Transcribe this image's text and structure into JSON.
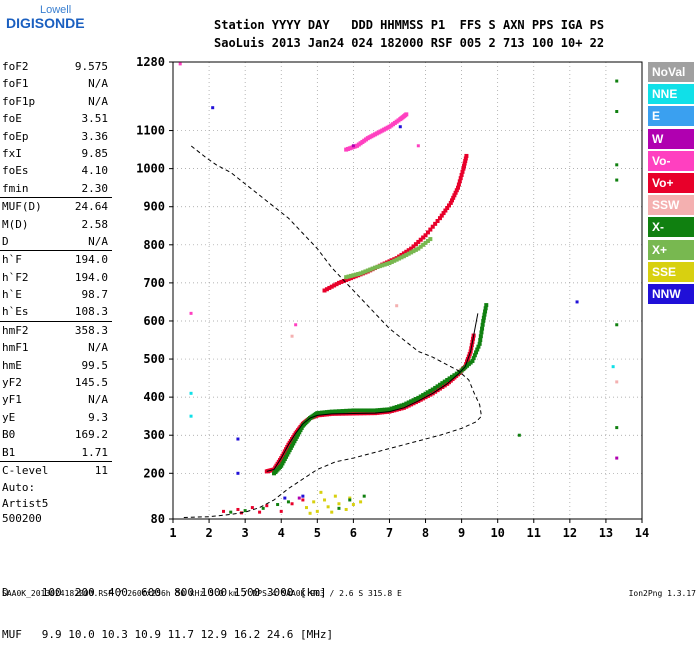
{
  "logo": {
    "line1": "Lowell",
    "line2": "DIGISONDE"
  },
  "header": {
    "line1": "Station YYYY DAY   DDD HHMMSS P1  FFS S AXN PPS IGA PS",
    "line2": "SaoLuis 2013 Jan24 024 182000 RSF 005 2 713 100 10+ 22"
  },
  "params": [
    {
      "k": "foF2",
      "v": "9.575"
    },
    {
      "k": "foF1",
      "v": "N/A"
    },
    {
      "k": "foF1p",
      "v": "N/A"
    },
    {
      "k": "foE",
      "v": "3.51"
    },
    {
      "k": "foEp",
      "v": "3.36"
    },
    {
      "k": "fxI",
      "v": "9.85"
    },
    {
      "k": "foEs",
      "v": "4.10"
    },
    {
      "k": "fmin",
      "v": "2.30"
    },
    {
      "k": "MUF(D)",
      "v": "24.64",
      "sep": true
    },
    {
      "k": "M(D)",
      "v": "2.58"
    },
    {
      "k": "D",
      "v": "N/A"
    },
    {
      "k": "h`F",
      "v": "194.0",
      "sep": true
    },
    {
      "k": "h`F2",
      "v": "194.0"
    },
    {
      "k": "h`E",
      "v": "98.7"
    },
    {
      "k": "h`Es",
      "v": "108.3"
    },
    {
      "k": "hmF2",
      "v": "358.3",
      "sep": true
    },
    {
      "k": "hmF1",
      "v": "N/A"
    },
    {
      "k": "hmE",
      "v": "99.5"
    },
    {
      "k": "yF2",
      "v": "145.5"
    },
    {
      "k": "yF1",
      "v": "N/A"
    },
    {
      "k": "yE",
      "v": "9.3"
    },
    {
      "k": "B0",
      "v": "169.2"
    },
    {
      "k": "B1",
      "v": "1.71"
    },
    {
      "k": "C-level",
      "v": "11",
      "sep": true
    }
  ],
  "auto": {
    "line1": "Auto:",
    "line2": "Artist5",
    "line3": "500200"
  },
  "legend": [
    {
      "label": "NoVal",
      "color": "#a0a0a0"
    },
    {
      "label": "NNE",
      "color": "#10e0e8"
    },
    {
      "label": "E",
      "color": "#3aa0f0"
    },
    {
      "label": "W",
      "color": "#b000b0"
    },
    {
      "label": "Vo-",
      "color": "#ff40c0"
    },
    {
      "label": "Vo+",
      "color": "#e8002a"
    },
    {
      "label": "SSW",
      "color": "#f4b0b0"
    },
    {
      "label": "X-",
      "color": "#108010"
    },
    {
      "label": "X+",
      "color": "#78b850"
    },
    {
      "label": "SSE",
      "color": "#d8d010"
    },
    {
      "label": "NNW",
      "color": "#2010d8"
    }
  ],
  "bottom": {
    "line1": "D     100  200  400  600  800 1000 1500 3000 [km]",
    "line2": "MUF   9.9 10.0 10.3 10.9 11.7 12.9 16.2 24.6 [MHz]"
  },
  "footer": "SAA0K_2013024182000.RSF / 260fx256h 50 kHz 5.0 km / DPS-4 SAA0K 903 / 2.6 S 315.8 E",
  "version": "Ion2Png 1.3.17",
  "chart_data": {
    "type": "scatter",
    "x_ticks": [
      1,
      2,
      3,
      4,
      5,
      6,
      7,
      8,
      9,
      10,
      11,
      12,
      13,
      14
    ],
    "y_ticks": [
      80,
      200,
      300,
      400,
      500,
      600,
      700,
      800,
      900,
      1000,
      1100,
      1280
    ],
    "xlim": [
      1,
      14
    ],
    "ylim": [
      80,
      1280
    ],
    "grid": "dotted",
    "series": [
      {
        "name": "Vo+",
        "kind": "trace",
        "color": "#e8002a",
        "points": [
          [
            3.6,
            205
          ],
          [
            3.8,
            210
          ],
          [
            4.0,
            240
          ],
          [
            4.2,
            275
          ],
          [
            4.4,
            305
          ],
          [
            4.6,
            330
          ],
          [
            4.8,
            345
          ],
          [
            5.0,
            352
          ],
          [
            5.4,
            356
          ],
          [
            6.0,
            357
          ],
          [
            6.6,
            358
          ],
          [
            7.0,
            362
          ],
          [
            7.4,
            372
          ],
          [
            7.8,
            390
          ],
          [
            8.2,
            410
          ],
          [
            8.6,
            435
          ],
          [
            8.9,
            460
          ],
          [
            9.1,
            480
          ],
          [
            9.25,
            520
          ],
          [
            9.35,
            570
          ]
        ]
      },
      {
        "name": "X-",
        "kind": "trace",
        "color": "#108010",
        "points": [
          [
            3.8,
            200
          ],
          [
            4.0,
            220
          ],
          [
            4.2,
            255
          ],
          [
            4.4,
            290
          ],
          [
            4.6,
            325
          ],
          [
            4.8,
            345
          ],
          [
            5.0,
            358
          ],
          [
            5.4,
            362
          ],
          [
            6.0,
            365
          ],
          [
            6.6,
            365
          ],
          [
            7.0,
            368
          ],
          [
            7.4,
            380
          ],
          [
            7.8,
            398
          ],
          [
            8.2,
            420
          ],
          [
            8.6,
            445
          ],
          [
            9.0,
            470
          ],
          [
            9.3,
            495
          ],
          [
            9.5,
            540
          ],
          [
            9.6,
            600
          ],
          [
            9.7,
            650
          ]
        ]
      },
      {
        "name": "Vo+",
        "kind": "trace",
        "color": "#e8002a",
        "points": [
          [
            5.2,
            680
          ],
          [
            5.6,
            700
          ],
          [
            6.0,
            715
          ],
          [
            6.4,
            730
          ],
          [
            6.8,
            748
          ],
          [
            7.2,
            765
          ],
          [
            7.6,
            790
          ],
          [
            8.0,
            825
          ],
          [
            8.4,
            870
          ],
          [
            8.7,
            910
          ],
          [
            8.9,
            950
          ],
          [
            9.05,
            1000
          ],
          [
            9.15,
            1040
          ]
        ]
      },
      {
        "name": "X+",
        "kind": "trace",
        "color": "#78b850",
        "points": [
          [
            5.8,
            715
          ],
          [
            6.2,
            725
          ],
          [
            6.6,
            740
          ],
          [
            7.0,
            752
          ],
          [
            7.4,
            770
          ],
          [
            7.8,
            790
          ],
          [
            8.2,
            820
          ]
        ]
      },
      {
        "name": "Vo-",
        "kind": "trace",
        "color": "#ff40c0",
        "points": [
          [
            5.8,
            1050
          ],
          [
            6.1,
            1060
          ],
          [
            6.4,
            1080
          ],
          [
            6.7,
            1095
          ],
          [
            7.0,
            1110
          ],
          [
            7.3,
            1130
          ],
          [
            7.5,
            1145
          ]
        ]
      },
      {
        "name": "SSE",
        "kind": "cloud",
        "color": "#d8d010",
        "points": [
          [
            4.7,
            110
          ],
          [
            4.9,
            125
          ],
          [
            5.0,
            100
          ],
          [
            5.2,
            130
          ],
          [
            5.3,
            112
          ],
          [
            5.5,
            140
          ],
          [
            5.6,
            120
          ],
          [
            5.8,
            105
          ],
          [
            5.9,
            135
          ],
          [
            6.0,
            118
          ],
          [
            6.2,
            125
          ],
          [
            5.1,
            150
          ],
          [
            4.8,
            95
          ],
          [
            5.4,
            98
          ]
        ]
      },
      {
        "name": "Vo+",
        "kind": "cloud",
        "color": "#e8002a",
        "points": [
          [
            2.4,
            100
          ],
          [
            2.8,
            105
          ],
          [
            3.2,
            110
          ],
          [
            3.6,
            115
          ],
          [
            4.0,
            100
          ],
          [
            4.3,
            120
          ],
          [
            4.6,
            130
          ],
          [
            3.4,
            98
          ],
          [
            2.9,
            96
          ]
        ]
      },
      {
        "name": "X-",
        "kind": "cloud",
        "color": "#108010",
        "points": [
          [
            2.6,
            98
          ],
          [
            3.0,
            102
          ],
          [
            3.5,
            108
          ],
          [
            3.9,
            118
          ],
          [
            4.2,
            125
          ],
          [
            5.6,
            108
          ],
          [
            5.9,
            130
          ],
          [
            6.3,
            140
          ]
        ]
      },
      {
        "name": "NNW",
        "kind": "cloud",
        "color": "#2010d8",
        "points": [
          [
            2.1,
            1160
          ],
          [
            2.8,
            290
          ],
          [
            2.8,
            200
          ],
          [
            4.6,
            140
          ],
          [
            4.1,
            135
          ],
          [
            12.2,
            650
          ],
          [
            7.3,
            1110
          ]
        ]
      },
      {
        "name": "X-",
        "kind": "cloud",
        "color": "#108010",
        "points": [
          [
            13.3,
            1230
          ],
          [
            13.3,
            1150
          ],
          [
            13.3,
            1010
          ],
          [
            13.3,
            970
          ],
          [
            13.3,
            590
          ],
          [
            13.3,
            320
          ],
          [
            10.6,
            300
          ]
        ]
      },
      {
        "name": "W",
        "kind": "cloud",
        "color": "#b000b0",
        "points": [
          [
            13.3,
            240
          ],
          [
            4.5,
            135
          ],
          [
            6.0,
            1060
          ]
        ]
      },
      {
        "name": "NNE",
        "kind": "cloud",
        "color": "#10e0e8",
        "points": [
          [
            1.5,
            410
          ],
          [
            1.5,
            350
          ],
          [
            13.2,
            480
          ]
        ]
      },
      {
        "name": "SSW",
        "kind": "cloud",
        "color": "#f4b0b0",
        "points": [
          [
            4.3,
            560
          ],
          [
            13.3,
            440
          ],
          [
            7.2,
            640
          ]
        ]
      },
      {
        "name": "Vo-",
        "kind": "cloud",
        "color": "#ff40c0",
        "points": [
          [
            4.4,
            590
          ],
          [
            1.5,
            620
          ],
          [
            1.2,
            1275
          ],
          [
            7.8,
            1060
          ]
        ]
      }
    ],
    "profile": [
      [
        1.3,
        84
      ],
      [
        2.0,
        86
      ],
      [
        2.6,
        92
      ],
      [
        3.0,
        98
      ],
      [
        3.4,
        110
      ],
      [
        3.8,
        130
      ],
      [
        4.2,
        160
      ],
      [
        4.6,
        185
      ],
      [
        5.0,
        210
      ],
      [
        5.5,
        230
      ],
      [
        6.0,
        240
      ],
      [
        6.6,
        255
      ],
      [
        7.2,
        270
      ],
      [
        7.8,
        285
      ],
      [
        8.4,
        300
      ],
      [
        9.0,
        318
      ],
      [
        9.4,
        335
      ],
      [
        9.55,
        350
      ],
      [
        9.5,
        380
      ],
      [
        9.35,
        410
      ],
      [
        9.2,
        445
      ],
      [
        8.9,
        470
      ],
      [
        8.6,
        485
      ],
      [
        8.2,
        505
      ],
      [
        7.8,
        520
      ],
      [
        7.4,
        550
      ],
      [
        7.0,
        580
      ],
      [
        6.6,
        620
      ],
      [
        6.2,
        660
      ],
      [
        5.8,
        700
      ],
      [
        5.4,
        740
      ],
      [
        5.0,
        790
      ],
      [
        4.6,
        830
      ],
      [
        4.2,
        870
      ],
      [
        3.8,
        900
      ],
      [
        3.4,
        930
      ],
      [
        3.0,
        960
      ],
      [
        2.6,
        990
      ],
      [
        2.2,
        1010
      ],
      [
        1.9,
        1030
      ],
      [
        1.5,
        1060
      ]
    ],
    "trace_line": [
      [
        3.6,
        205
      ],
      [
        3.8,
        210
      ],
      [
        4.0,
        240
      ],
      [
        4.2,
        275
      ],
      [
        4.4,
        305
      ],
      [
        4.6,
        330
      ],
      [
        4.8,
        345
      ],
      [
        5.0,
        352
      ],
      [
        5.4,
        356
      ],
      [
        6.0,
        357
      ],
      [
        6.6,
        358
      ],
      [
        7.0,
        362
      ],
      [
        7.4,
        372
      ],
      [
        7.8,
        390
      ],
      [
        8.2,
        410
      ],
      [
        8.6,
        435
      ],
      [
        8.9,
        460
      ],
      [
        9.1,
        480
      ],
      [
        9.25,
        520
      ],
      [
        9.35,
        570
      ],
      [
        9.45,
        620
      ]
    ]
  }
}
